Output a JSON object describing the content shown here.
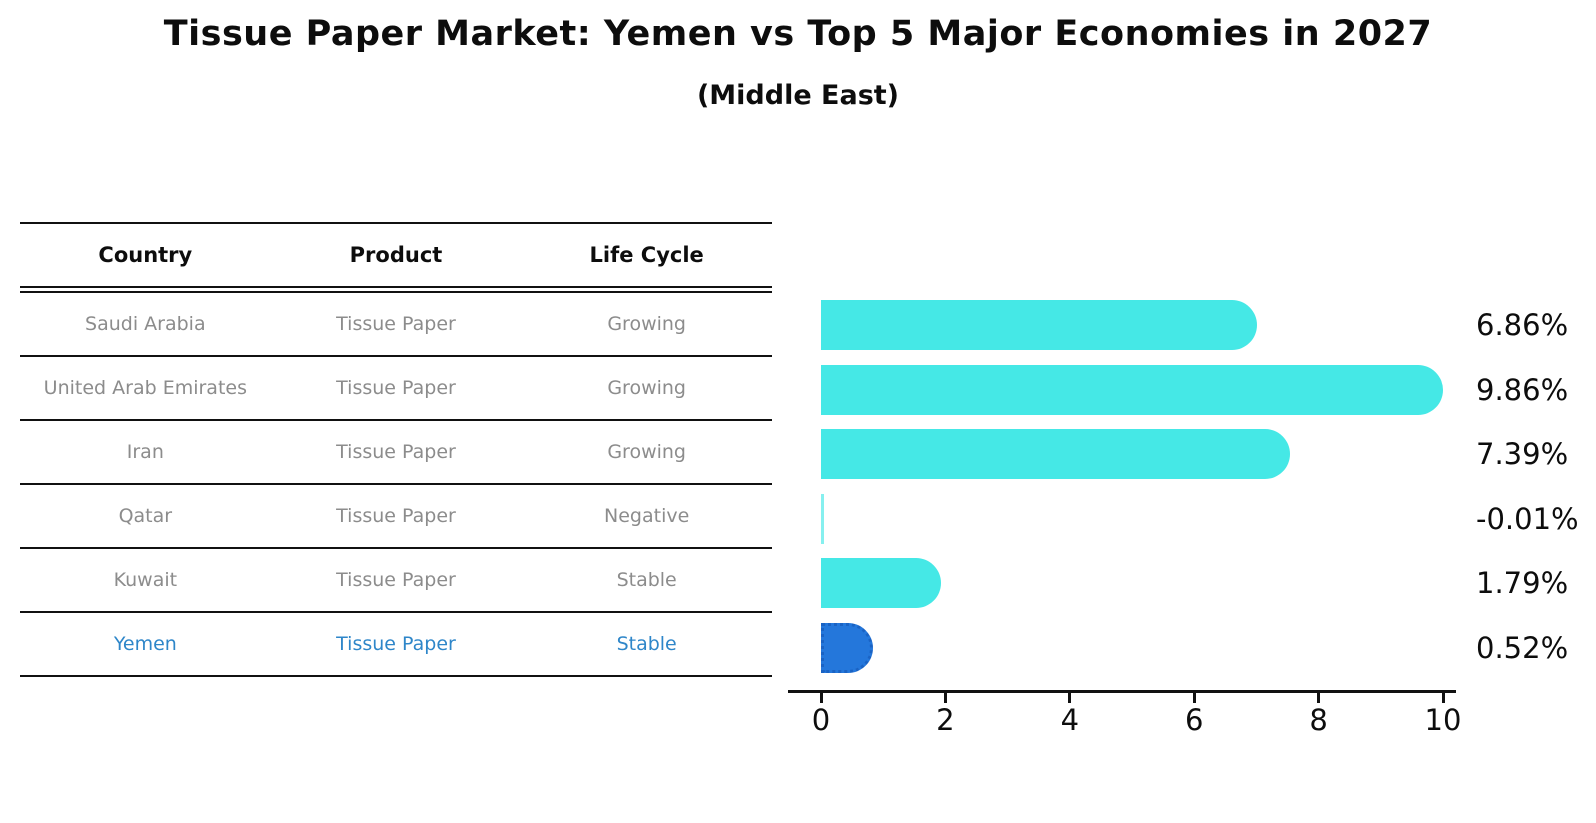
{
  "title": "Tissue Paper Market: Yemen vs Top 5 Major Economies in 2027",
  "subtitle": "(Middle East)",
  "table": {
    "headers": [
      "Country",
      "Product",
      "Life Cycle"
    ],
    "rows": [
      {
        "country": "Saudi Arabia",
        "product": "Tissue Paper",
        "life_cycle": "Growing",
        "highlighted": false
      },
      {
        "country": "United Arab Emirates",
        "product": "Tissue Paper",
        "life_cycle": "Growing",
        "highlighted": false
      },
      {
        "country": "Iran",
        "product": "Tissue Paper",
        "life_cycle": "Growing",
        "highlighted": false
      },
      {
        "country": "Qatar",
        "product": "Tissue Paper",
        "life_cycle": "Negative",
        "highlighted": false
      },
      {
        "country": "Kuwait",
        "product": "Tissue Paper",
        "life_cycle": "Stable",
        "highlighted": false
      },
      {
        "country": "Yemen",
        "product": "Tissue Paper",
        "life_cycle": "Stable",
        "highlighted": true
      }
    ]
  },
  "chart_data": {
    "type": "bar",
    "orientation": "horizontal",
    "title": "Tissue Paper Market: Yemen vs Top 5 Major Economies in 2027",
    "subtitle": "(Middle East)",
    "categories": [
      "Saudi Arabia",
      "United Arab Emirates",
      "Iran",
      "Qatar",
      "Kuwait",
      "Yemen"
    ],
    "values": [
      6.86,
      9.86,
      7.39,
      -0.01,
      1.79,
      0.52
    ],
    "value_labels": [
      "6.86%",
      "9.86%",
      "7.39%",
      "-0.01%",
      "1.79%",
      "0.52%"
    ],
    "xlim": [
      0,
      10
    ],
    "xticks": [
      "0",
      "2",
      "4",
      "6",
      "8",
      "10"
    ],
    "grid": false,
    "legend": false,
    "highlight_index": 5,
    "bar_color": "#45e8e6",
    "highlight_bar_color": "#2477db",
    "highlight_border_color": "#1a63c4",
    "highlight_text_color": "#2e86c9"
  }
}
